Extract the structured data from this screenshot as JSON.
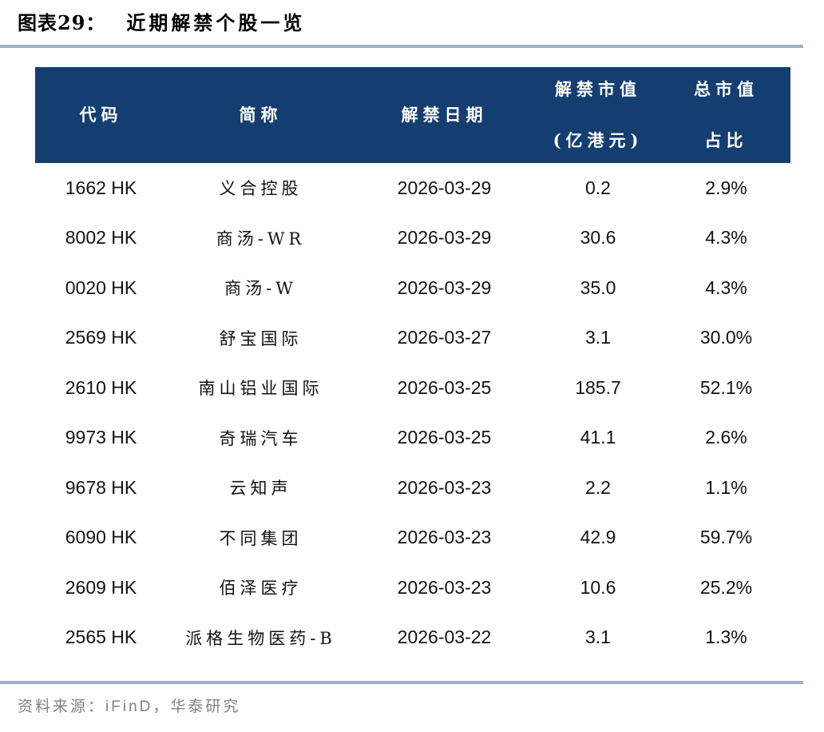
{
  "figure": {
    "index_label": "图表29：",
    "title": "近期解禁个股一览"
  },
  "colors": {
    "header_bg": "#153E70",
    "accent_rule": "#9FB0C6",
    "header_text": "#FFFFFF",
    "source_text": "#808080"
  },
  "table": {
    "columns": [
      {
        "label": "代码"
      },
      {
        "label": "简称"
      },
      {
        "label": "解禁日期"
      },
      {
        "label": "解禁市值",
        "label2": "(亿港元)"
      },
      {
        "label": "总市值",
        "label2": "占比"
      }
    ],
    "rows": [
      {
        "code": "1662 HK",
        "name": "义合控股",
        "date": "2026-03-29",
        "unlock_value": "0.2",
        "total_mcap_pct": "2.9%"
      },
      {
        "code": "8002 HK",
        "name": "商汤-WR",
        "date": "2026-03-29",
        "unlock_value": "30.6",
        "total_mcap_pct": "4.3%"
      },
      {
        "code": "0020 HK",
        "name": "商汤-W",
        "date": "2026-03-29",
        "unlock_value": "35.0",
        "total_mcap_pct": "4.3%"
      },
      {
        "code": "2569 HK",
        "name": "舒宝国际",
        "date": "2026-03-27",
        "unlock_value": "3.1",
        "total_mcap_pct": "30.0%"
      },
      {
        "code": "2610 HK",
        "name": "南山铝业国际",
        "date": "2026-03-25",
        "unlock_value": "185.7",
        "total_mcap_pct": "52.1%"
      },
      {
        "code": "9973 HK",
        "name": "奇瑞汽车",
        "date": "2026-03-25",
        "unlock_value": "41.1",
        "total_mcap_pct": "2.6%"
      },
      {
        "code": "9678 HK",
        "name": "云知声",
        "date": "2026-03-23",
        "unlock_value": "2.2",
        "total_mcap_pct": "1.1%"
      },
      {
        "code": "6090 HK",
        "name": "不同集团",
        "date": "2026-03-23",
        "unlock_value": "42.9",
        "total_mcap_pct": "59.7%"
      },
      {
        "code": "2609 HK",
        "name": "佰泽医疗",
        "date": "2026-03-23",
        "unlock_value": "10.6",
        "total_mcap_pct": "25.2%"
      },
      {
        "code": "2565 HK",
        "name": "派格生物医药-B",
        "date": "2026-03-22",
        "unlock_value": "3.1",
        "total_mcap_pct": "1.3%"
      }
    ]
  },
  "source": {
    "prefix": "资料来源：",
    "text": "iFinD，华泰研究"
  },
  "chart_data": {
    "type": "table",
    "title": "近期解禁个股一览",
    "columns": [
      "代码",
      "简称",
      "解禁日期",
      "解禁市值(亿港元)",
      "总市值占比"
    ],
    "rows": [
      [
        "1662 HK",
        "义合控股",
        "2026-03-29",
        0.2,
        "2.9%"
      ],
      [
        "8002 HK",
        "商汤-WR",
        "2026-03-29",
        30.6,
        "4.3%"
      ],
      [
        "0020 HK",
        "商汤-W",
        "2026-03-29",
        35.0,
        "4.3%"
      ],
      [
        "2569 HK",
        "舒宝国际",
        "2026-03-27",
        3.1,
        "30.0%"
      ],
      [
        "2610 HK",
        "南山铝业国际",
        "2026-03-25",
        185.7,
        "52.1%"
      ],
      [
        "9973 HK",
        "奇瑞汽车",
        "2026-03-25",
        41.1,
        "2.6%"
      ],
      [
        "9678 HK",
        "云知声",
        "2026-03-23",
        2.2,
        "1.1%"
      ],
      [
        "6090 HK",
        "不同集团",
        "2026-03-23",
        42.9,
        "59.7%"
      ],
      [
        "2609 HK",
        "佰泽医疗",
        "2026-03-23",
        10.6,
        "25.2%"
      ],
      [
        "2565 HK",
        "派格生物医药-B",
        "2026-03-22",
        3.1,
        "1.3%"
      ]
    ]
  }
}
